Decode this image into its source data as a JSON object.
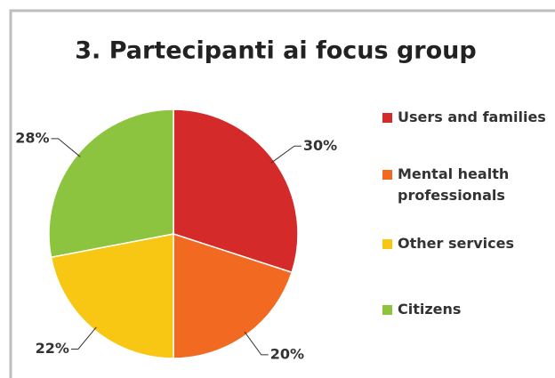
{
  "chart_data": {
    "type": "pie",
    "title": "3. Partecipanti ai focus group",
    "categories": [
      "Users and families",
      "Mental health professionals",
      "Other services",
      "Citizens"
    ],
    "values": [
      30,
      20,
      22,
      28
    ],
    "value_labels": [
      "30%",
      "20%",
      "22%",
      "28%"
    ],
    "colors": [
      "#d42a2a",
      "#f26a22",
      "#f8c714",
      "#8cc43f"
    ],
    "legend": "right"
  }
}
